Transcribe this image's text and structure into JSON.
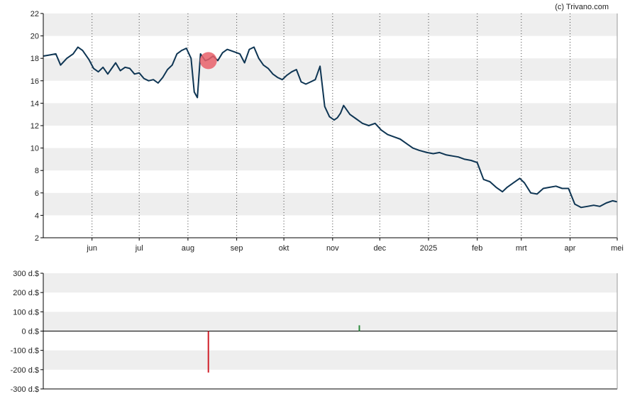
{
  "credit": "(c) Trivano.com",
  "colors": {
    "line": "#0e3553",
    "band": "#eeeeee",
    "axis": "#000000",
    "marker": "#e8606a",
    "bar_negative": "#d0202a",
    "bar_positive": "#2a8a3a"
  },
  "chart_data": [
    {
      "type": "line",
      "ylim": [
        2,
        22
      ],
      "yticks": [
        "2",
        "4",
        "6",
        "8",
        "10",
        "12",
        "14",
        "16",
        "18",
        "20",
        "22"
      ],
      "xticks": [
        "jun",
        "jul",
        "aug",
        "sep",
        "okt",
        "nov",
        "dec",
        "2025",
        "feb",
        "mrt",
        "apr",
        "mei"
      ],
      "grid": "horizontal bands, dotted vertical lines at month ticks",
      "marker": {
        "x": "2024-08-14",
        "y": 17.8
      },
      "series": [
        {
          "x": [
            "2024-05-01",
            "2024-05-05",
            "2024-05-09",
            "2024-05-12",
            "2024-05-16",
            "2024-05-20",
            "2024-05-23",
            "2024-05-26",
            "2024-05-30",
            "2024-06-02",
            "2024-06-05",
            "2024-06-08",
            "2024-06-11",
            "2024-06-13",
            "2024-06-16",
            "2024-06-19",
            "2024-06-22",
            "2024-06-25",
            "2024-06-28",
            "2024-07-01",
            "2024-07-04",
            "2024-07-07",
            "2024-07-10",
            "2024-07-13",
            "2024-07-16",
            "2024-07-19",
            "2024-07-22",
            "2024-07-25",
            "2024-07-28",
            "2024-07-31",
            "2024-08-03",
            "2024-08-05",
            "2024-08-07",
            "2024-08-09",
            "2024-08-12",
            "2024-08-14",
            "2024-08-17",
            "2024-08-20",
            "2024-08-23",
            "2024-08-26",
            "2024-08-30",
            "2024-09-03",
            "2024-09-06",
            "2024-09-09",
            "2024-09-12",
            "2024-09-15",
            "2024-09-18",
            "2024-09-21",
            "2024-09-24",
            "2024-09-27",
            "2024-09-30",
            "2024-10-03",
            "2024-10-06",
            "2024-10-09",
            "2024-10-12",
            "2024-10-15",
            "2024-10-18",
            "2024-10-21",
            "2024-10-24",
            "2024-10-27",
            "2024-10-30",
            "2024-11-02",
            "2024-11-04",
            "2024-11-06",
            "2024-11-08",
            "2024-11-12",
            "2024-11-16",
            "2024-11-20",
            "2024-11-24",
            "2024-11-28",
            "2024-12-02",
            "2024-12-06",
            "2024-12-10",
            "2024-12-14",
            "2024-12-18",
            "2024-12-22",
            "2024-12-26",
            "2024-12-31",
            "2025-01-04",
            "2025-01-08",
            "2025-01-12",
            "2025-01-16",
            "2025-01-20",
            "2025-01-24",
            "2025-01-28",
            "2025-02-01",
            "2025-02-05",
            "2025-02-09",
            "2025-02-13",
            "2025-02-17",
            "2025-02-20",
            "2025-02-24",
            "2025-02-28",
            "2025-03-03",
            "2025-03-07",
            "2025-03-11",
            "2025-03-15",
            "2025-03-19",
            "2025-03-23",
            "2025-03-27",
            "2025-03-31",
            "2025-04-04",
            "2025-04-08",
            "2025-04-12",
            "2025-04-16",
            "2025-04-20",
            "2025-04-24",
            "2025-04-28",
            "2025-05-01"
          ],
          "values": [
            18.2,
            18.3,
            18.4,
            17.4,
            18.0,
            18.4,
            19.0,
            18.7,
            17.9,
            17.1,
            16.8,
            17.2,
            16.6,
            17.0,
            17.6,
            16.9,
            17.2,
            17.1,
            16.6,
            16.7,
            16.2,
            16.0,
            16.1,
            15.8,
            16.3,
            17.0,
            17.4,
            18.4,
            18.7,
            18.9,
            18.0,
            15.0,
            14.5,
            18.4,
            17.8,
            17.9,
            18.2,
            17.8,
            18.5,
            18.8,
            18.6,
            18.4,
            17.6,
            18.8,
            19.0,
            18.0,
            17.4,
            17.1,
            16.6,
            16.3,
            16.1,
            16.5,
            16.8,
            17.0,
            15.9,
            15.7,
            15.9,
            16.1,
            17.3,
            13.7,
            12.8,
            12.5,
            12.7,
            13.1,
            13.8,
            13.0,
            12.6,
            12.2,
            12.0,
            12.2,
            11.6,
            11.2,
            11.0,
            10.8,
            10.4,
            10.0,
            9.8,
            9.6,
            9.5,
            9.6,
            9.4,
            9.3,
            9.2,
            9.0,
            8.9,
            8.7,
            7.2,
            7.0,
            6.5,
            6.1,
            6.5,
            6.9,
            7.3,
            6.9,
            6.0,
            5.9,
            6.4,
            6.5,
            6.6,
            6.4,
            6.4,
            5.0,
            4.7,
            4.8,
            4.9,
            4.8,
            5.1,
            5.3,
            5.2
          ]
        }
      ]
    },
    {
      "type": "bar",
      "ylim": [
        -300,
        300
      ],
      "yticks": [
        "300 d.$",
        "200 d.$",
        "100 d.$",
        "0 d.$",
        "-100 d.$",
        "-200 d.$",
        "-300 d.$"
      ],
      "bars": [
        {
          "x": "2024-08-14",
          "value": -215,
          "color": "#d0202a"
        },
        {
          "x": "2024-11-18",
          "value": 30,
          "color": "#2a8a3a"
        }
      ]
    }
  ]
}
